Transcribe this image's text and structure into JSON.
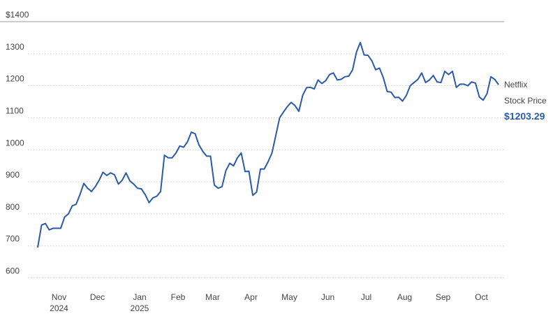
{
  "chart_data": {
    "type": "line",
    "categories": [
      null,
      null,
      null,
      null,
      null,
      "Nov 2024",
      null,
      null,
      null,
      null,
      null,
      null,
      null,
      null,
      null,
      "Dec",
      null,
      null,
      null,
      null,
      null,
      null,
      null,
      null,
      null,
      null,
      "Jan 2025",
      null,
      null,
      null,
      null,
      null,
      null,
      null,
      null,
      null,
      "Feb",
      null,
      null,
      null,
      null,
      null,
      null,
      null,
      null,
      "Mar",
      null,
      null,
      null,
      null,
      null,
      null,
      null,
      null,
      null,
      "Apr",
      null,
      null,
      null,
      null,
      null,
      null,
      null,
      null,
      null,
      "May",
      null,
      null,
      null,
      null,
      null,
      null,
      null,
      null,
      null,
      "Jun",
      null,
      null,
      null,
      null,
      null,
      null,
      null,
      null,
      null,
      "Jul",
      null,
      null,
      null,
      null,
      null,
      null,
      null,
      null,
      null,
      "Aug",
      null,
      null,
      null,
      null,
      null,
      null,
      null,
      null,
      null,
      "Sep",
      null,
      null,
      null,
      null,
      null,
      null,
      null,
      null,
      null,
      "Oct",
      null,
      null,
      null,
      null,
      null
    ],
    "series": [
      {
        "name": "Netflix",
        "label": "Stock Price",
        "color": "#2a5aa8",
        "values": [
          695,
          765,
          770,
          750,
          755,
          755,
          755,
          790,
          800,
          825,
          830,
          860,
          895,
          880,
          870,
          885,
          905,
          930,
          920,
          928,
          922,
          893,
          905,
          928,
          903,
          893,
          880,
          878,
          860,
          835,
          850,
          855,
          870,
          983,
          975,
          975,
          990,
          1012,
          1008,
          1025,
          1055,
          1050,
          1015,
          995,
          980,
          980,
          890,
          880,
          885,
          935,
          958,
          950,
          975,
          990,
          932,
          933,
          858,
          868,
          940,
          940,
          963,
          990,
          1045,
          1100,
          1118,
          1135,
          1148,
          1138,
          1120,
          1170,
          1194,
          1195,
          1190,
          1218,
          1207,
          1216,
          1235,
          1240,
          1218,
          1220,
          1228,
          1230,
          1250,
          1305,
          1335,
          1296,
          1295,
          1278,
          1250,
          1255,
          1225,
          1182,
          1180,
          1163,
          1164,
          1152,
          1170,
          1200,
          1210,
          1220,
          1240,
          1210,
          1218,
          1232,
          1212,
          1210,
          1245,
          1235,
          1245,
          1195,
          1205,
          1205,
          1200,
          1212,
          1208,
          1165,
          1155,
          1175,
          1228,
          1220,
          1203.29
        ],
        "value_labels": [
          null,
          null,
          null,
          null,
          null,
          null,
          null,
          null,
          null,
          null,
          null,
          null,
          null,
          null,
          null,
          null,
          null,
          null,
          null,
          null,
          null,
          null,
          null,
          null,
          null,
          null,
          null,
          null,
          null,
          null,
          null,
          null,
          null,
          null,
          null,
          null,
          null,
          null,
          null,
          null,
          null,
          null,
          null,
          null,
          null,
          null,
          null,
          null,
          null,
          null,
          null,
          null,
          null,
          null,
          null,
          null,
          null,
          null,
          null,
          null,
          null,
          null,
          null,
          null,
          null,
          null,
          null,
          null,
          null,
          null,
          null,
          null,
          null,
          null,
          null,
          null,
          null,
          null,
          null,
          null,
          null,
          null,
          null,
          null,
          null,
          null,
          null,
          null,
          null,
          null,
          null,
          null,
          null,
          null,
          null,
          null,
          null,
          null,
          null,
          null,
          null,
          null,
          null,
          null,
          null,
          null,
          null,
          null,
          null,
          null,
          null,
          null,
          null,
          null,
          null,
          null,
          null,
          null,
          null,
          null,
          "$1203.29"
        ]
      }
    ],
    "ylim": [
      575,
      1400
    ],
    "yticks": [
      600,
      700,
      800,
      900,
      1000,
      1100,
      1200,
      1300,
      {
        "value": 1400,
        "label": "$1400"
      }
    ],
    "grid": true
  }
}
